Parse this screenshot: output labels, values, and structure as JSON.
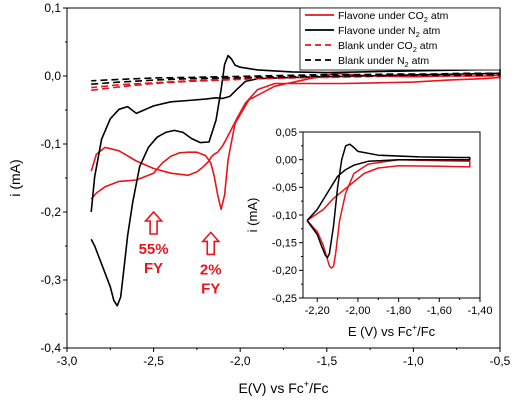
{
  "chart_data": [
    {
      "type": "line",
      "xlabel_parts": [
        "E(V) vs Fc",
        "+",
        "/Fc"
      ],
      "ylabel": "i (mA)",
      "xlim": [
        -3.0,
        -0.5
      ],
      "ylim": [
        -0.4,
        0.1
      ],
      "x_ticks": [
        "-3,0",
        "-2,5",
        "-2,0",
        "-1,5",
        "-1,0",
        "-0,5"
      ],
      "x_tick_values": [
        -3.0,
        -2.5,
        -2.0,
        -1.5,
        -1.0,
        -0.5
      ],
      "y_ticks": [
        "0,1",
        "0,0",
        "-0,1",
        "-0,2",
        "-0,3",
        "-0,4"
      ],
      "y_tick_values": [
        0.1,
        0.0,
        -0.1,
        -0.2,
        -0.3,
        -0.4
      ],
      "legend": {
        "placement": "top-right",
        "entries": [
          {
            "parts": [
              "Flavone under CO",
              "2",
              " atm"
            ],
            "color": "#e8141c",
            "dash": "solid"
          },
          {
            "parts": [
              "Flavone under N",
              "2",
              " atm"
            ],
            "color": "#000000",
            "dash": "solid"
          },
          {
            "parts": [
              "Blank under CO",
              "2",
              " atm"
            ],
            "color": "#e8141c",
            "dash": "dashed"
          },
          {
            "parts": [
              "Blank under N",
              "2",
              " atm"
            ],
            "color": "#000000",
            "dash": "dashed"
          }
        ]
      },
      "annotations": [
        {
          "lines": [
            "55%",
            "FY"
          ],
          "x": -2.5,
          "y": -0.2,
          "color": "#e8141c"
        },
        {
          "lines": [
            "2%",
            "FY"
          ],
          "x": -2.17,
          "y": -0.23,
          "color": "#e8141c"
        }
      ],
      "series": [
        {
          "name": "Flavone under CO2 atm",
          "color": "#e8141c",
          "dash": "solid",
          "x": [
            -2.86,
            -2.83,
            -2.78,
            -2.7,
            -2.6,
            -2.5,
            -2.45,
            -2.4,
            -2.35,
            -2.3,
            -2.25,
            -2.2,
            -2.17,
            -2.15,
            -2.13,
            -2.11,
            -2.09,
            -2.07,
            -2.03,
            -1.95,
            -1.8,
            -1.6,
            -1.5,
            -1.45,
            -1.4,
            -1.3,
            -1.2,
            -1.0,
            -0.8,
            -0.6,
            -0.5,
            -0.5,
            -0.6,
            -0.8,
            -1.0,
            -1.2,
            -1.4,
            -1.6,
            -1.8,
            -1.9,
            -1.97,
            -2.02,
            -2.06,
            -2.1,
            -2.13,
            -2.15,
            -2.16,
            -2.17,
            -2.18,
            -2.2,
            -2.22,
            -2.25,
            -2.3,
            -2.4,
            -2.5,
            -2.6,
            -2.7,
            -2.78,
            -2.83,
            -2.86
          ],
          "y": [
            -0.181,
            -0.172,
            -0.163,
            -0.155,
            -0.153,
            -0.143,
            -0.128,
            -0.118,
            -0.113,
            -0.112,
            -0.112,
            -0.117,
            -0.128,
            -0.147,
            -0.175,
            -0.196,
            -0.175,
            -0.123,
            -0.07,
            -0.035,
            -0.015,
            -0.004,
            0.001,
            0.004,
            0.003,
            0.001,
            0.0,
            -0.001,
            0.0,
            0.0,
            0.001,
            -0.002,
            -0.004,
            -0.006,
            -0.009,
            -0.01,
            -0.011,
            -0.011,
            -0.011,
            -0.02,
            -0.04,
            -0.063,
            -0.083,
            -0.102,
            -0.112,
            -0.115,
            -0.117,
            -0.12,
            -0.125,
            -0.13,
            -0.135,
            -0.141,
            -0.146,
            -0.143,
            -0.136,
            -0.125,
            -0.11,
            -0.105,
            -0.115,
            -0.14
          ]
        },
        {
          "name": "Flavone under N2 atm",
          "color": "#000000",
          "dash": "solid",
          "x": [
            -2.86,
            -2.84,
            -2.81,
            -2.78,
            -2.75,
            -2.73,
            -2.71,
            -2.69,
            -2.67,
            -2.65,
            -2.62,
            -2.58,
            -2.53,
            -2.48,
            -2.43,
            -2.38,
            -2.33,
            -2.28,
            -2.23,
            -2.18,
            -2.14,
            -2.11,
            -2.09,
            -2.07,
            -2.05,
            -2.03,
            -2.0,
            -1.9,
            -1.7,
            -1.5,
            -1.3,
            -1.1,
            -0.9,
            -0.7,
            -0.5,
            -0.5,
            -0.7,
            -0.9,
            -1.1,
            -1.3,
            -1.5,
            -1.7,
            -1.9,
            -1.97,
            -2.02,
            -2.06,
            -2.1,
            -2.14,
            -2.2,
            -2.3,
            -2.4,
            -2.5,
            -2.6,
            -2.65,
            -2.7,
            -2.75,
            -2.8,
            -2.84,
            -2.86
          ],
          "y": [
            -0.24,
            -0.25,
            -0.27,
            -0.29,
            -0.31,
            -0.33,
            -0.338,
            -0.325,
            -0.28,
            -0.235,
            -0.185,
            -0.133,
            -0.105,
            -0.09,
            -0.083,
            -0.08,
            -0.083,
            -0.092,
            -0.098,
            -0.097,
            -0.065,
            -0.02,
            0.017,
            0.03,
            0.025,
            0.016,
            0.013,
            0.009,
            0.006,
            0.005,
            0.006,
            0.007,
            0.008,
            0.009,
            0.01,
            0.004,
            0.003,
            0.002,
            0.001,
            0.0,
            -0.001,
            -0.002,
            -0.004,
            -0.008,
            -0.02,
            -0.03,
            -0.033,
            -0.032,
            -0.034,
            -0.036,
            -0.038,
            -0.044,
            -0.055,
            -0.045,
            -0.049,
            -0.063,
            -0.093,
            -0.148,
            -0.2
          ]
        },
        {
          "name": "Blank under CO2 atm",
          "color": "#e8141c",
          "dash": "dashed",
          "x": [
            -2.86,
            -2.7,
            -2.5,
            -2.3,
            -2.1,
            -1.9,
            -1.7,
            -1.5,
            -1.3,
            -1.1,
            -0.9,
            -0.7,
            -0.5,
            -0.5,
            -0.7,
            -0.9,
            -1.1,
            -1.3,
            -1.5,
            -1.7,
            -1.9,
            -2.1,
            -2.3,
            -2.5,
            -2.7,
            -2.86
          ],
          "y": [
            -0.021,
            -0.016,
            -0.011,
            -0.008,
            -0.006,
            -0.004,
            -0.003,
            -0.002,
            -0.001,
            0.0,
            0.0,
            0.0,
            0.0,
            0.002,
            0.002,
            0.001,
            0.0,
            -0.001,
            -0.002,
            -0.002,
            -0.003,
            -0.005,
            -0.007,
            -0.01,
            -0.013,
            -0.017
          ]
        },
        {
          "name": "Blank under N2 atm",
          "color": "#000000",
          "dash": "dashed",
          "x": [
            -2.86,
            -2.7,
            -2.5,
            -2.3,
            -2.1,
            -1.9,
            -1.7,
            -1.5,
            -1.3,
            -1.1,
            -0.9,
            -0.7,
            -0.5,
            -0.5,
            -0.7,
            -0.9,
            -1.1,
            -1.3,
            -1.5,
            -1.7,
            -1.9,
            -2.1,
            -2.3,
            -2.5,
            -2.7,
            -2.86
          ],
          "y": [
            -0.012,
            -0.009,
            -0.006,
            -0.004,
            -0.003,
            -0.002,
            -0.001,
            0.0,
            0.0,
            0.001,
            0.001,
            0.001,
            0.002,
            0.004,
            0.004,
            0.003,
            0.003,
            0.002,
            0.002,
            0.001,
            0.0,
            -0.001,
            -0.002,
            -0.003,
            -0.005,
            -0.007
          ]
        }
      ]
    },
    {
      "type": "line",
      "inset": true,
      "xlabel_parts": [
        "E (V) vs Fc",
        "+",
        "/Fc"
      ],
      "ylabel": "i (mA)",
      "xlim": [
        -2.27,
        -1.4
      ],
      "ylim": [
        -0.25,
        0.05
      ],
      "x_ticks": [
        "-2,20",
        "-2,00",
        "-1,80",
        "-1,60",
        "-1,40"
      ],
      "x_tick_values": [
        -2.2,
        -2.0,
        -1.8,
        -1.6,
        -1.4
      ],
      "y_ticks": [
        "0,05",
        "0,00",
        "-0,05",
        "-0,10",
        "-0,15",
        "-0,20",
        "-0,25"
      ],
      "y_tick_values": [
        0.05,
        0.0,
        -0.05,
        -0.1,
        -0.15,
        -0.2,
        -0.25
      ],
      "series": [
        {
          "color": "#e8141c",
          "dash": "solid",
          "x": [
            -2.25,
            -2.2,
            -2.17,
            -2.15,
            -2.14,
            -2.13,
            -2.12,
            -2.11,
            -2.09,
            -2.06,
            -2.02,
            -1.95,
            -1.8,
            -1.6,
            -1.45,
            -1.45,
            -1.6,
            -1.8,
            -1.9,
            -1.97,
            -2.02,
            -2.07,
            -2.12,
            -2.17,
            -2.25
          ],
          "y": [
            -0.11,
            -0.13,
            -0.155,
            -0.18,
            -0.192,
            -0.196,
            -0.193,
            -0.17,
            -0.11,
            -0.06,
            -0.025,
            -0.008,
            0.0,
            -0.002,
            -0.003,
            -0.013,
            -0.012,
            -0.011,
            -0.015,
            -0.025,
            -0.04,
            -0.055,
            -0.07,
            -0.09,
            -0.11
          ]
        },
        {
          "color": "#000000",
          "dash": "solid",
          "x": [
            -2.25,
            -2.2,
            -2.18,
            -2.16,
            -2.15,
            -2.14,
            -2.12,
            -2.1,
            -2.08,
            -2.06,
            -2.04,
            -2.02,
            -2.0,
            -1.9,
            -1.7,
            -1.5,
            -1.45,
            -1.45,
            -1.6,
            -1.8,
            -1.95,
            -2.02,
            -2.06,
            -2.1,
            -2.15,
            -2.2,
            -2.25
          ],
          "y": [
            -0.11,
            -0.135,
            -0.155,
            -0.173,
            -0.177,
            -0.17,
            -0.12,
            -0.05,
            0.0,
            0.025,
            0.028,
            0.022,
            0.015,
            0.008,
            0.005,
            0.004,
            0.004,
            0.0,
            0.0,
            0.0,
            -0.003,
            -0.01,
            -0.018,
            -0.03,
            -0.06,
            -0.09,
            -0.11
          ]
        }
      ]
    }
  ]
}
